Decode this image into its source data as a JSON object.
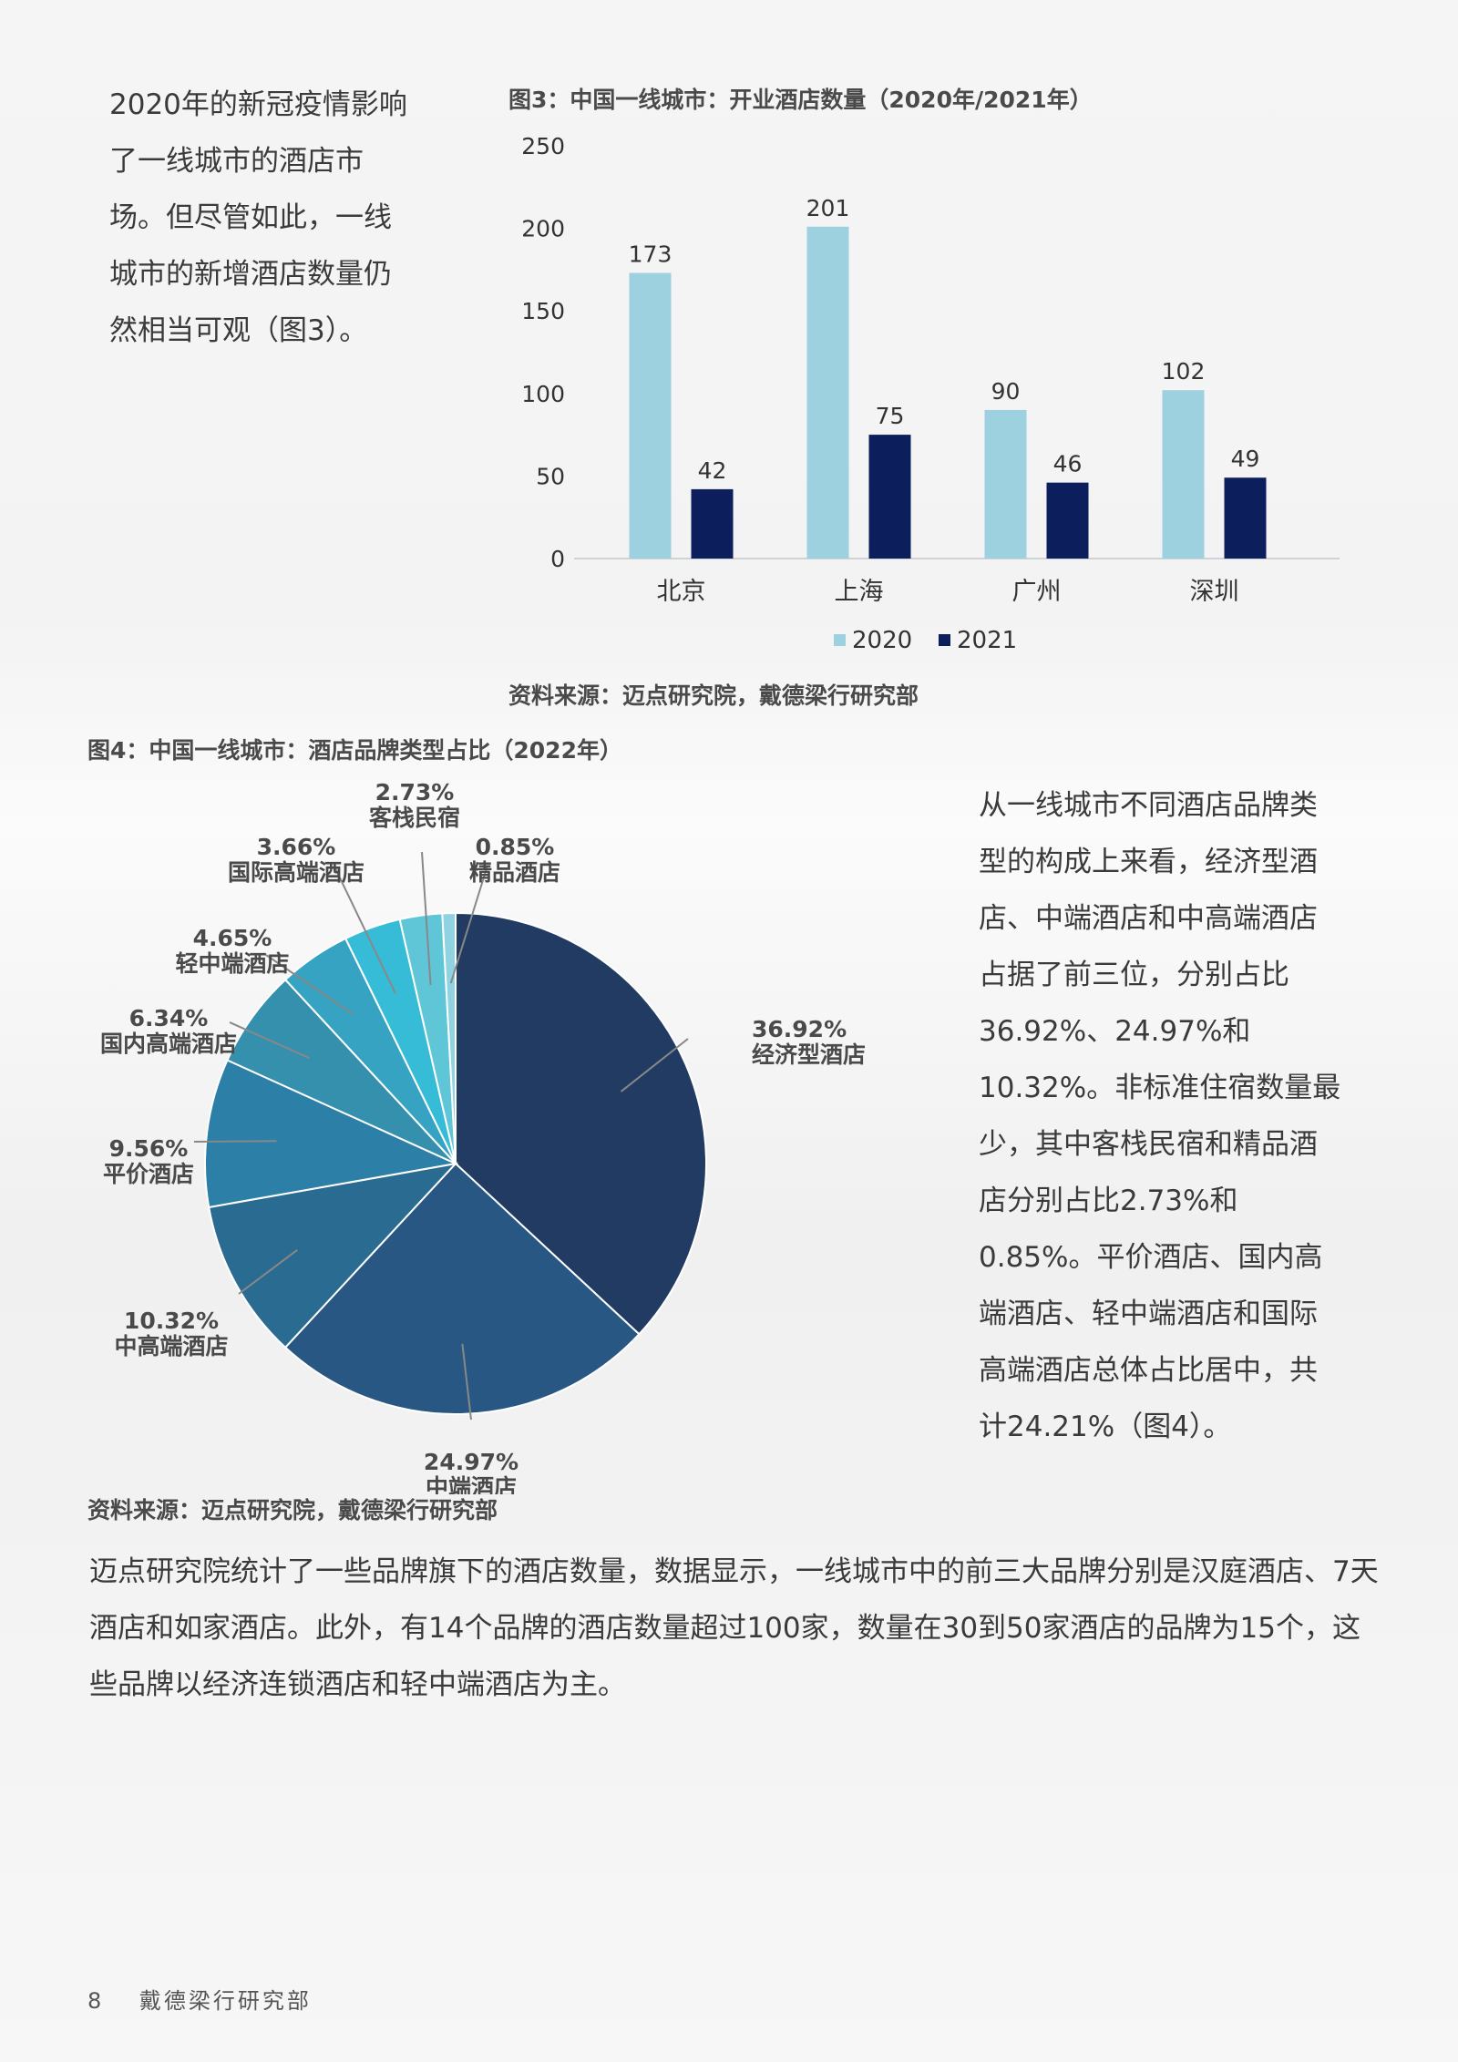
{
  "intro_text": "2020年的新冠疫情影响了一线城市的酒店市场。但尽管如此，一线城市的新增酒店数量仍然相当可观（图3）。",
  "figure3": {
    "title": "图3：中国一线城市：开业酒店数量（2020年/2021年）",
    "source": "资料来源：迈点研究院，戴德梁行研究部"
  },
  "figure4": {
    "title": "图4：中国一线城市：酒店品牌类型占比（2022年）",
    "source": "资料来源：迈点研究院，戴德梁行研究部"
  },
  "right_text": "从一线城市不同酒店品牌类型的构成上来看，经济型酒店、中端酒店和中高端酒店占据了前三位，分别占比36.92%、24.97%和10.32%。非标准住宿数量最少，其中客栈民宿和精品酒店分别占比2.73%和0.85%。平价酒店、国内高端酒店、轻中端酒店和国际高端酒店总体占比居中，共计24.21%（图4）。",
  "bottom_text": "迈点研究院统计了一些品牌旗下的酒店数量，数据显示，一线城市中的前三大品牌分别是汉庭酒店、7天酒店和如家酒店。此外，有14个品牌的酒店数量超过100家，数量在30到50家酒店的品牌为15个，这些品牌以经济连锁酒店和轻中端酒店为主。",
  "footer": {
    "page": "8",
    "org": "戴德梁行研究部"
  },
  "chart_data": [
    {
      "type": "bar",
      "categories": [
        "北京",
        "上海",
        "广州",
        "深圳"
      ],
      "series": [
        {
          "name": "2020",
          "values": [
            173,
            201,
            90,
            102
          ],
          "color": "#9dd1df"
        },
        {
          "name": "2021",
          "values": [
            42,
            75,
            46,
            49
          ],
          "color": "#0c1f5c"
        }
      ],
      "ylim": [
        0,
        250
      ],
      "yticks": [
        "0",
        "50",
        "100",
        "150",
        "200",
        "250"
      ],
      "legend": "bottom",
      "grid": false
    },
    {
      "type": "pie",
      "slices": [
        {
          "label": "经济型酒店",
          "value": 36.92,
          "pct": "36.92%",
          "color": "#213b62"
        },
        {
          "label": "中端酒店",
          "value": 24.97,
          "pct": "24.97%",
          "color": "#285784"
        },
        {
          "label": "中高端酒店",
          "value": 10.32,
          "pct": "10.32%",
          "color": "#2a6b91"
        },
        {
          "label": "平价酒店",
          "value": 9.56,
          "pct": "9.56%",
          "color": "#2c7fa7"
        },
        {
          "label": "国内高端酒店",
          "value": 6.34,
          "pct": "6.34%",
          "color": "#3590ae"
        },
        {
          "label": "轻中端酒店",
          "value": 4.65,
          "pct": "4.65%",
          "color": "#35a3c1"
        },
        {
          "label": "国际高端酒店",
          "value": 3.66,
          "pct": "3.66%",
          "color": "#36bcd6"
        },
        {
          "label": "客栈民宿",
          "value": 2.73,
          "pct": "2.73%",
          "color": "#5fc6d8"
        },
        {
          "label": "精品酒店",
          "value": 0.85,
          "pct": "0.85%",
          "color": "#8fd3e2"
        }
      ]
    }
  ]
}
